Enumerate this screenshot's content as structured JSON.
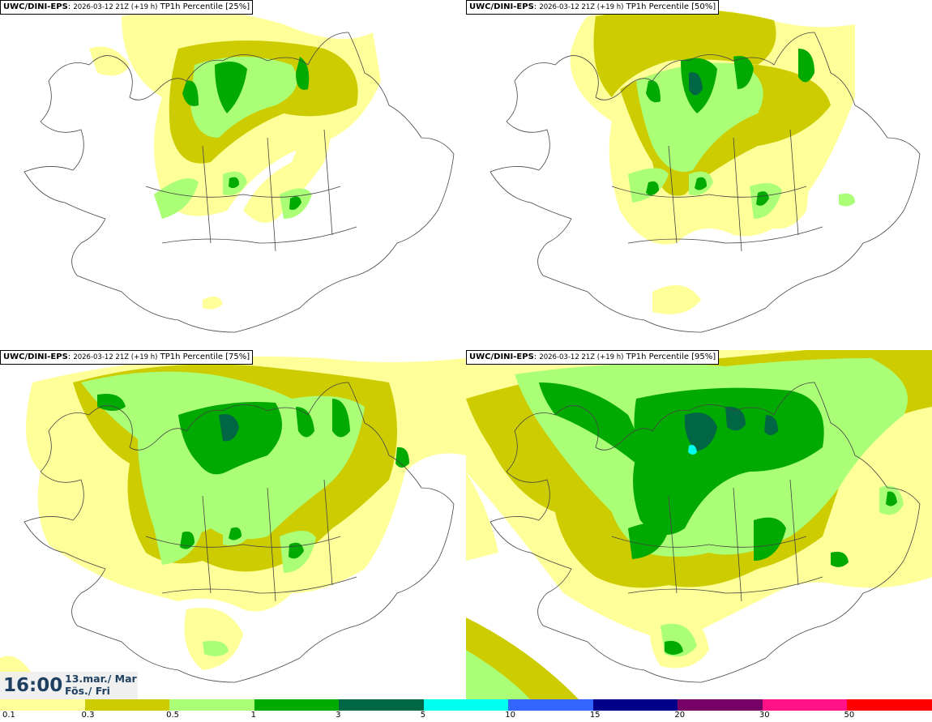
{
  "panels": [
    {
      "model": "UWC/DINI-EPS",
      "run": "2026-03-12 21Z (+19 h)",
      "field": "TP1h Percentile [25%]"
    },
    {
      "model": "UWC/DINI-EPS",
      "run": "2026-03-12 21Z (+19 h)",
      "field": "TP1h Percentile [50%]"
    },
    {
      "model": "UWC/DINI-EPS",
      "run": "2026-03-12 21Z (+19 h)",
      "field": "TP1h Percentile [75%]"
    },
    {
      "model": "UWC/DINI-EPS",
      "run": "2026-03-12 21Z (+19 h)",
      "field": "TP1h Percentile [95%]"
    }
  ],
  "valid": {
    "time": "16:00",
    "date_line1": "13.mar./ Mar",
    "date_line2": "Fös./ Fri"
  },
  "colorbar": {
    "ticks": [
      "0.1",
      "0.3",
      "0.5",
      "1",
      "3",
      "5",
      "10",
      "15",
      "20",
      "30",
      "50"
    ],
    "colors": [
      "#ffff99",
      "#cccc00",
      "#aaff77",
      "#00aa00",
      "#006644",
      "#00ffee",
      "#3366ff",
      "#000088",
      "#770066",
      "#ff1188",
      "#ff0000"
    ]
  },
  "precip_colors": {
    "light": "#ffff99",
    "moderate": "#cccc00",
    "pale_green": "#aaff77",
    "green": "#00aa00",
    "dark_green": "#006644",
    "cyan": "#00ffee"
  }
}
